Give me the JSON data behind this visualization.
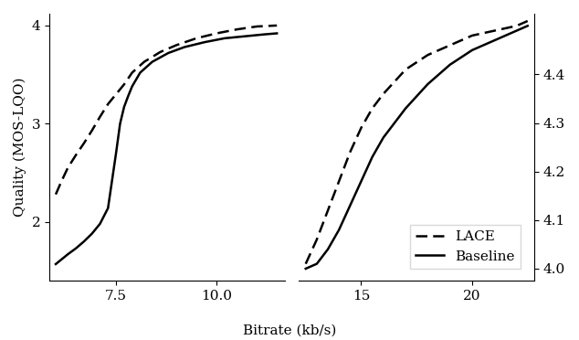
{
  "left_lace_x": [
    6.0,
    6.15,
    6.3,
    6.5,
    6.7,
    6.9,
    7.1,
    7.3,
    7.5,
    7.7,
    7.9,
    8.2,
    8.6,
    9.0,
    9.5,
    10.0,
    10.5,
    11.0,
    11.5
  ],
  "left_lace_y": [
    2.28,
    2.42,
    2.55,
    2.68,
    2.8,
    2.93,
    3.07,
    3.2,
    3.3,
    3.4,
    3.52,
    3.63,
    3.73,
    3.8,
    3.87,
    3.92,
    3.96,
    3.99,
    4.0
  ],
  "left_base_x": [
    6.0,
    6.15,
    6.3,
    6.5,
    6.7,
    6.9,
    7.1,
    7.3,
    7.5,
    7.6,
    7.7,
    7.8,
    7.9,
    8.1,
    8.4,
    8.8,
    9.2,
    9.7,
    10.2,
    10.7,
    11.2,
    11.5
  ],
  "left_base_y": [
    1.57,
    1.62,
    1.67,
    1.73,
    1.8,
    1.88,
    1.98,
    2.14,
    2.7,
    3.0,
    3.17,
    3.28,
    3.38,
    3.52,
    3.63,
    3.72,
    3.78,
    3.83,
    3.87,
    3.89,
    3.91,
    3.92
  ],
  "right_lace_x": [
    12.5,
    13.0,
    13.5,
    14.0,
    14.5,
    15.0,
    15.5,
    16.0,
    17.0,
    18.0,
    19.0,
    20.0,
    21.0,
    22.0,
    22.5
  ],
  "right_lace_y": [
    4.01,
    4.06,
    4.12,
    4.18,
    4.24,
    4.29,
    4.33,
    4.36,
    4.41,
    4.44,
    4.46,
    4.48,
    4.49,
    4.5,
    4.51
  ],
  "right_base_x": [
    12.5,
    13.0,
    13.5,
    14.0,
    14.5,
    15.0,
    15.5,
    16.0,
    17.0,
    18.0,
    19.0,
    20.0,
    21.0,
    22.0,
    22.5
  ],
  "right_base_y": [
    4.0,
    4.01,
    4.04,
    4.08,
    4.13,
    4.18,
    4.23,
    4.27,
    4.33,
    4.38,
    4.42,
    4.45,
    4.47,
    4.49,
    4.5
  ],
  "left_xlim": [
    5.85,
    11.7
  ],
  "left_ylim": [
    1.4,
    4.12
  ],
  "right_xlim": [
    12.2,
    22.8
  ],
  "right_ylim": [
    3.975,
    4.525
  ],
  "right_yticks": [
    4.0,
    4.1,
    4.2,
    4.3,
    4.4
  ],
  "left_xticks": [
    7.5,
    10.0
  ],
  "right_xticks": [
    15,
    20
  ],
  "left_yticks": [
    2,
    3,
    4
  ],
  "xlabel": "Bitrate (kb/s)",
  "ylabel": "Quality (MOS-LQO)",
  "lace_label": "LACE",
  "baseline_label": "Baseline",
  "line_color": "black",
  "linewidth": 1.8,
  "font_size": 11
}
